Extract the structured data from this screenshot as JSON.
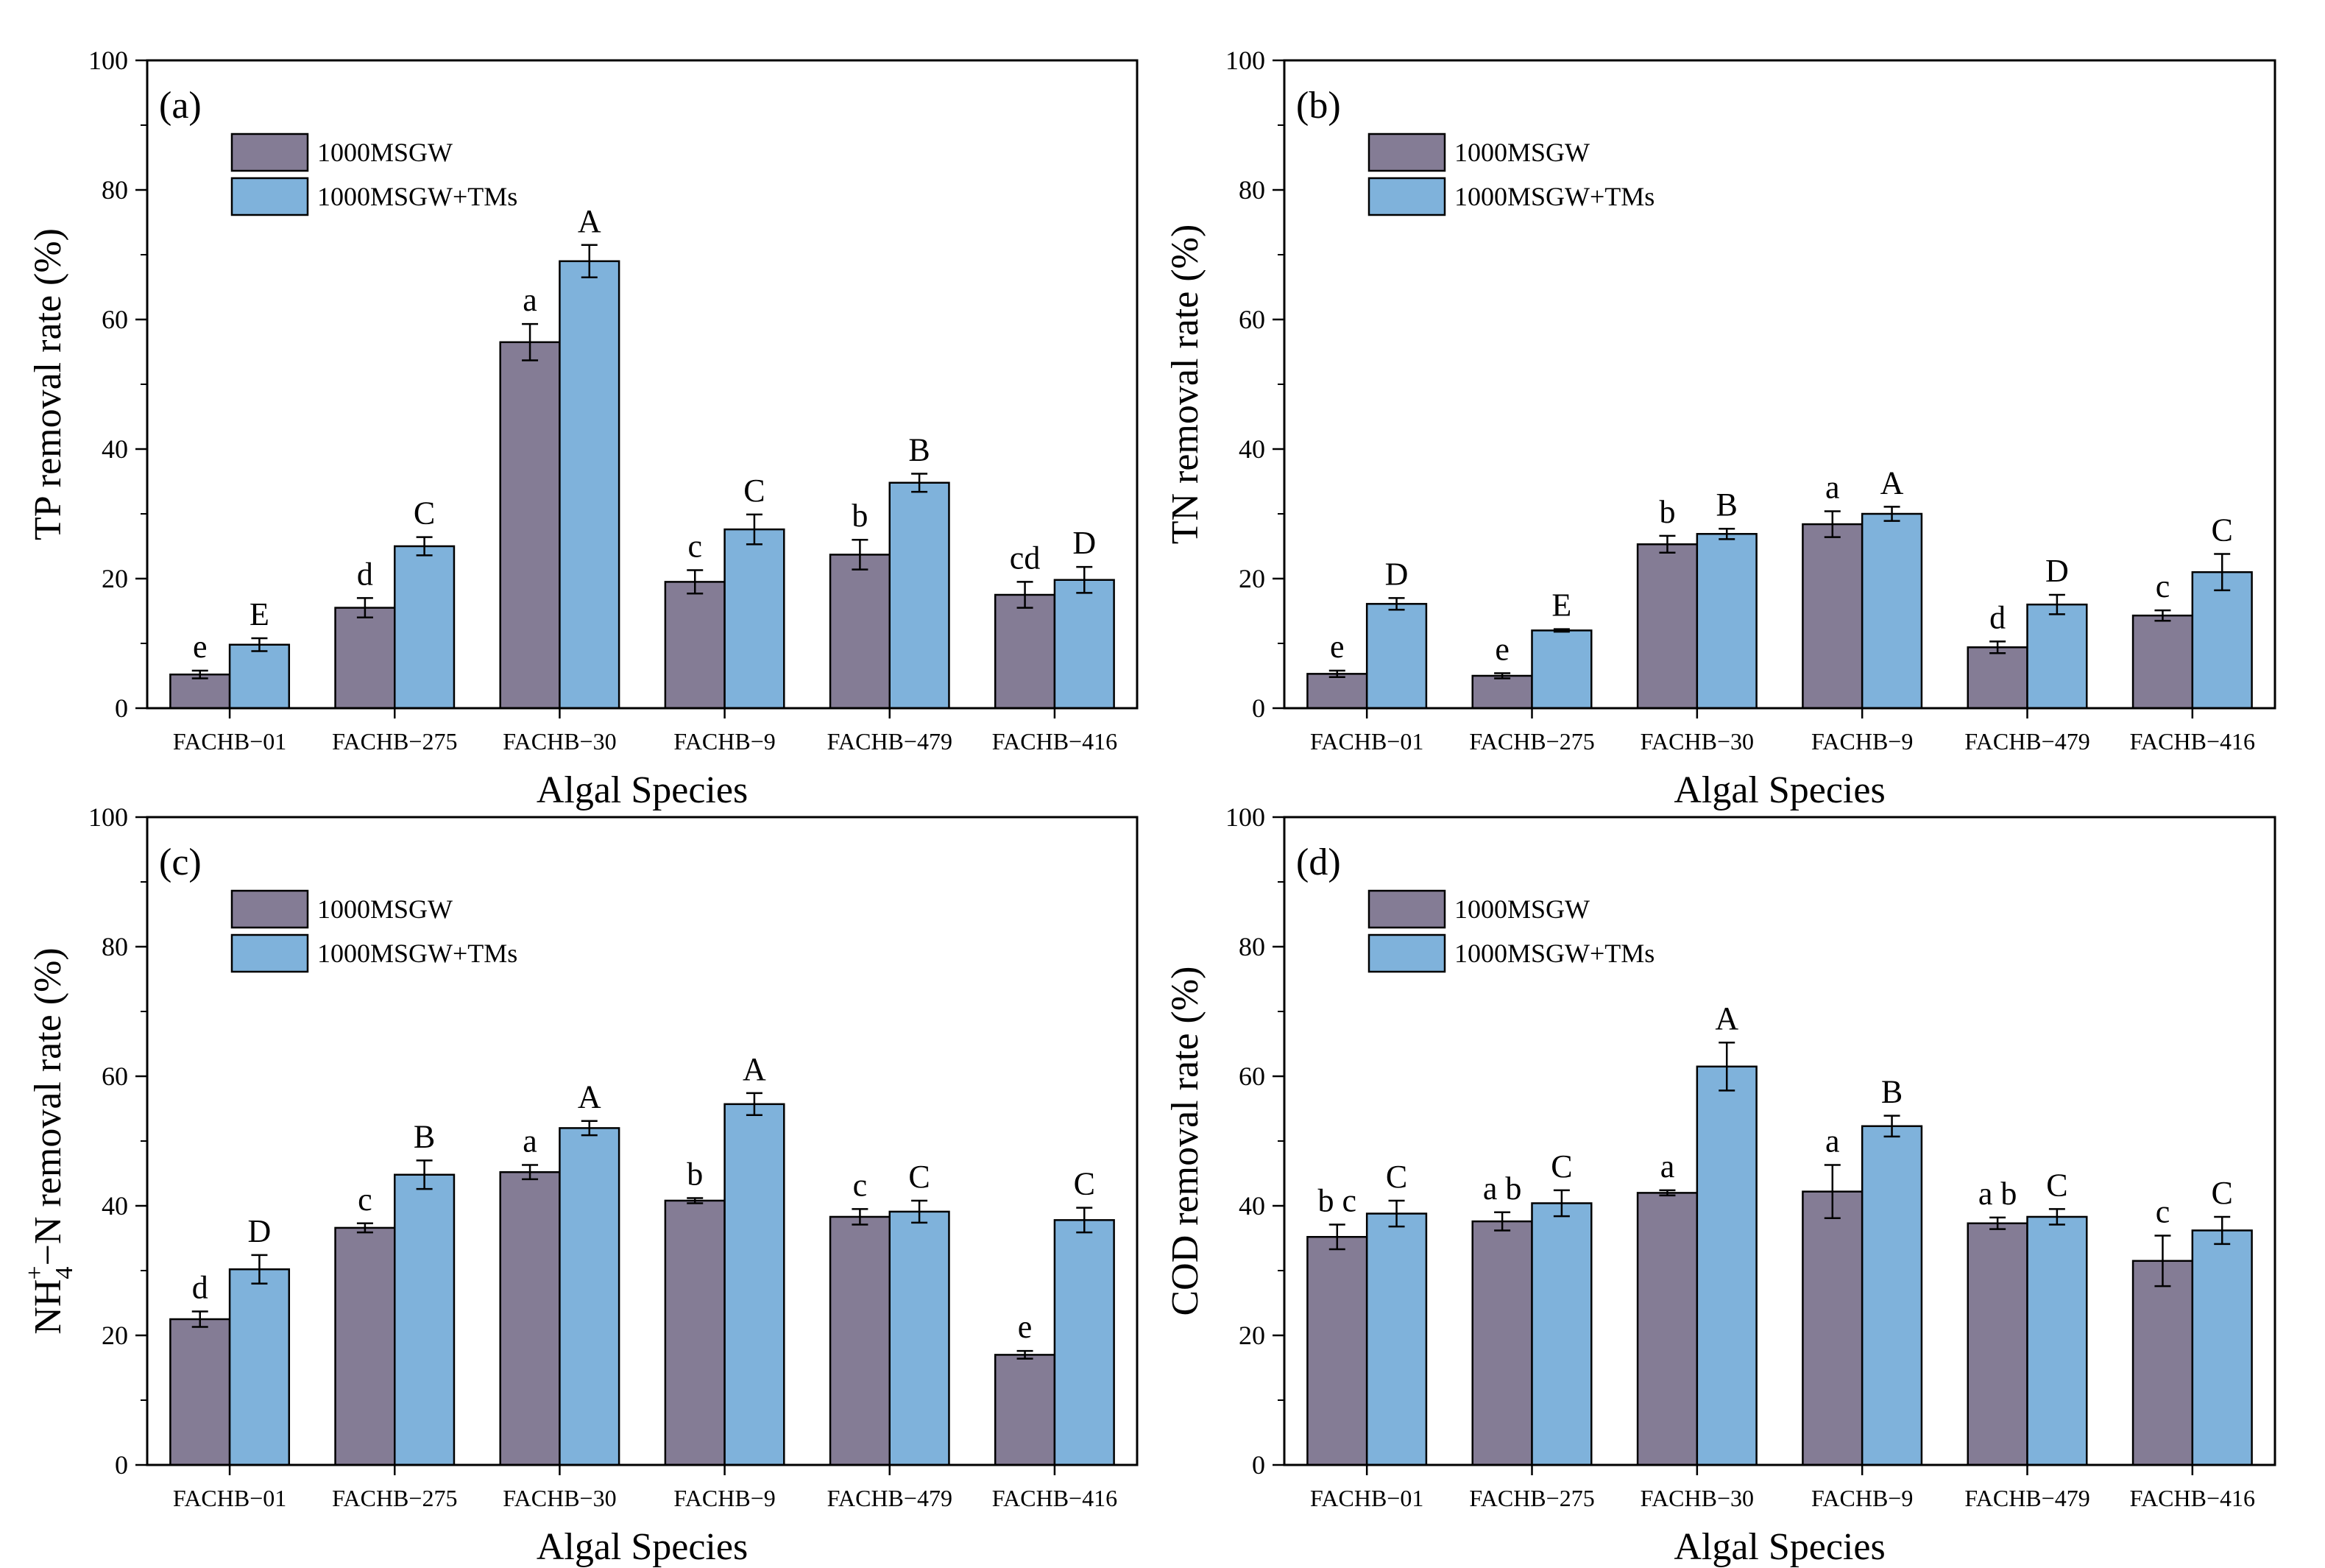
{
  "colors": {
    "series1": "#847c95",
    "series2": "#7fb2db",
    "axis": "#000000"
  },
  "legend": [
    "1000MSGW",
    "1000MSGW+TMs"
  ],
  "chart_data": [
    {
      "type": "bar",
      "panel": "(a)",
      "title": "",
      "xlabel": "Algal Species",
      "ylabel": "TP removal rate (%)",
      "ylim": [
        0,
        100
      ],
      "yticks": [
        0,
        20,
        40,
        60,
        80,
        100
      ],
      "legend_position": "top-left",
      "categories": [
        "FACHB−01",
        "FACHB−275",
        "FACHB−30",
        "FACHB−9",
        "FACHB−479",
        "FACHB−416"
      ],
      "series": [
        {
          "name": "1000MSGW",
          "values": [
            5.2,
            15.5,
            56.5,
            19.5,
            23.7,
            17.5
          ],
          "errors": [
            0.6,
            1.5,
            2.8,
            1.8,
            2.3,
            2.0
          ],
          "letters": [
            "e",
            "d",
            "a",
            "c",
            "b",
            "cd"
          ]
        },
        {
          "name": "1000MSGW+TMs",
          "values": [
            9.8,
            25.0,
            69.0,
            27.6,
            34.8,
            19.8
          ],
          "errors": [
            1.0,
            1.4,
            2.5,
            2.3,
            1.4,
            2.0
          ],
          "letters": [
            "E",
            "C",
            "A",
            "C",
            "B",
            "D"
          ]
        }
      ]
    },
    {
      "type": "bar",
      "panel": "(b)",
      "title": "",
      "xlabel": "Algal Species",
      "ylabel": "TN removal rate (%)",
      "ylim": [
        0,
        100
      ],
      "yticks": [
        0,
        20,
        40,
        60,
        80,
        100
      ],
      "legend_position": "top-left",
      "categories": [
        "FACHB−01",
        "FACHB−275",
        "FACHB−30",
        "FACHB−9",
        "FACHB−479",
        "FACHB−416"
      ],
      "series": [
        {
          "name": "1000MSGW",
          "values": [
            5.3,
            5.0,
            25.3,
            28.4,
            9.4,
            14.3
          ],
          "errors": [
            0.5,
            0.4,
            1.3,
            2.0,
            0.9,
            0.8
          ],
          "letters": [
            "e",
            "e",
            "b",
            "a",
            "d",
            "c"
          ]
        },
        {
          "name": "1000MSGW+TMs",
          "values": [
            16.1,
            12.0,
            26.9,
            30.0,
            16.0,
            21.0
          ],
          "errors": [
            0.9,
            0.2,
            0.8,
            1.1,
            1.5,
            2.8
          ],
          "letters": [
            "D",
            "E",
            "B",
            "A",
            "D",
            "C"
          ]
        }
      ]
    },
    {
      "type": "bar",
      "panel": "(c)",
      "title": "",
      "xlabel": "Algal Species",
      "ylabel": "NH4+−N removal rate (%)",
      "ylabel_parts": {
        "base": "NH",
        "sub": "4",
        "sup": "+",
        "rest": "−N removal rate (%)"
      },
      "ylim": [
        0,
        100
      ],
      "yticks": [
        0,
        20,
        40,
        60,
        80,
        100
      ],
      "legend_position": "top-left",
      "categories": [
        "FACHB−01",
        "FACHB−275",
        "FACHB−30",
        "FACHB−9",
        "FACHB−479",
        "FACHB−416"
      ],
      "series": [
        {
          "name": "1000MSGW",
          "values": [
            22.5,
            36.6,
            45.2,
            40.8,
            38.3,
            17.0
          ],
          "errors": [
            1.2,
            0.7,
            1.1,
            0.4,
            1.2,
            0.6
          ],
          "letters": [
            "d",
            "c",
            "a",
            "b",
            "c",
            "e"
          ]
        },
        {
          "name": "1000MSGW+TMs",
          "values": [
            30.2,
            44.8,
            52.0,
            55.7,
            39.1,
            37.8
          ],
          "errors": [
            2.2,
            2.2,
            1.1,
            1.7,
            1.7,
            1.9
          ],
          "letters": [
            "D",
            "B",
            "A",
            "A",
            "C",
            "C"
          ]
        }
      ]
    },
    {
      "type": "bar",
      "panel": "(d)",
      "title": "",
      "xlabel": "Algal Species",
      "ylabel": "COD removal rate (%)",
      "ylim": [
        0,
        100
      ],
      "yticks": [
        0,
        20,
        40,
        60,
        80,
        100
      ],
      "legend_position": "top-left",
      "categories": [
        "FACHB−01",
        "FACHB−275",
        "FACHB−30",
        "FACHB−9",
        "FACHB−479",
        "FACHB−416"
      ],
      "series": [
        {
          "name": "1000MSGW",
          "values": [
            35.2,
            37.6,
            42.0,
            42.2,
            37.3,
            31.5
          ],
          "errors": [
            1.9,
            1.4,
            0.4,
            4.1,
            0.9,
            3.9
          ],
          "letters": [
            "b c",
            "a b",
            "a",
            "a",
            "a b",
            "c"
          ]
        },
        {
          "name": "1000MSGW+TMs",
          "values": [
            38.8,
            40.4,
            61.5,
            52.3,
            38.3,
            36.2
          ],
          "errors": [
            2.0,
            2.0,
            3.7,
            1.6,
            1.2,
            2.1
          ],
          "letters": [
            "C",
            "C",
            "A",
            "B",
            "C",
            "C"
          ]
        }
      ]
    }
  ]
}
